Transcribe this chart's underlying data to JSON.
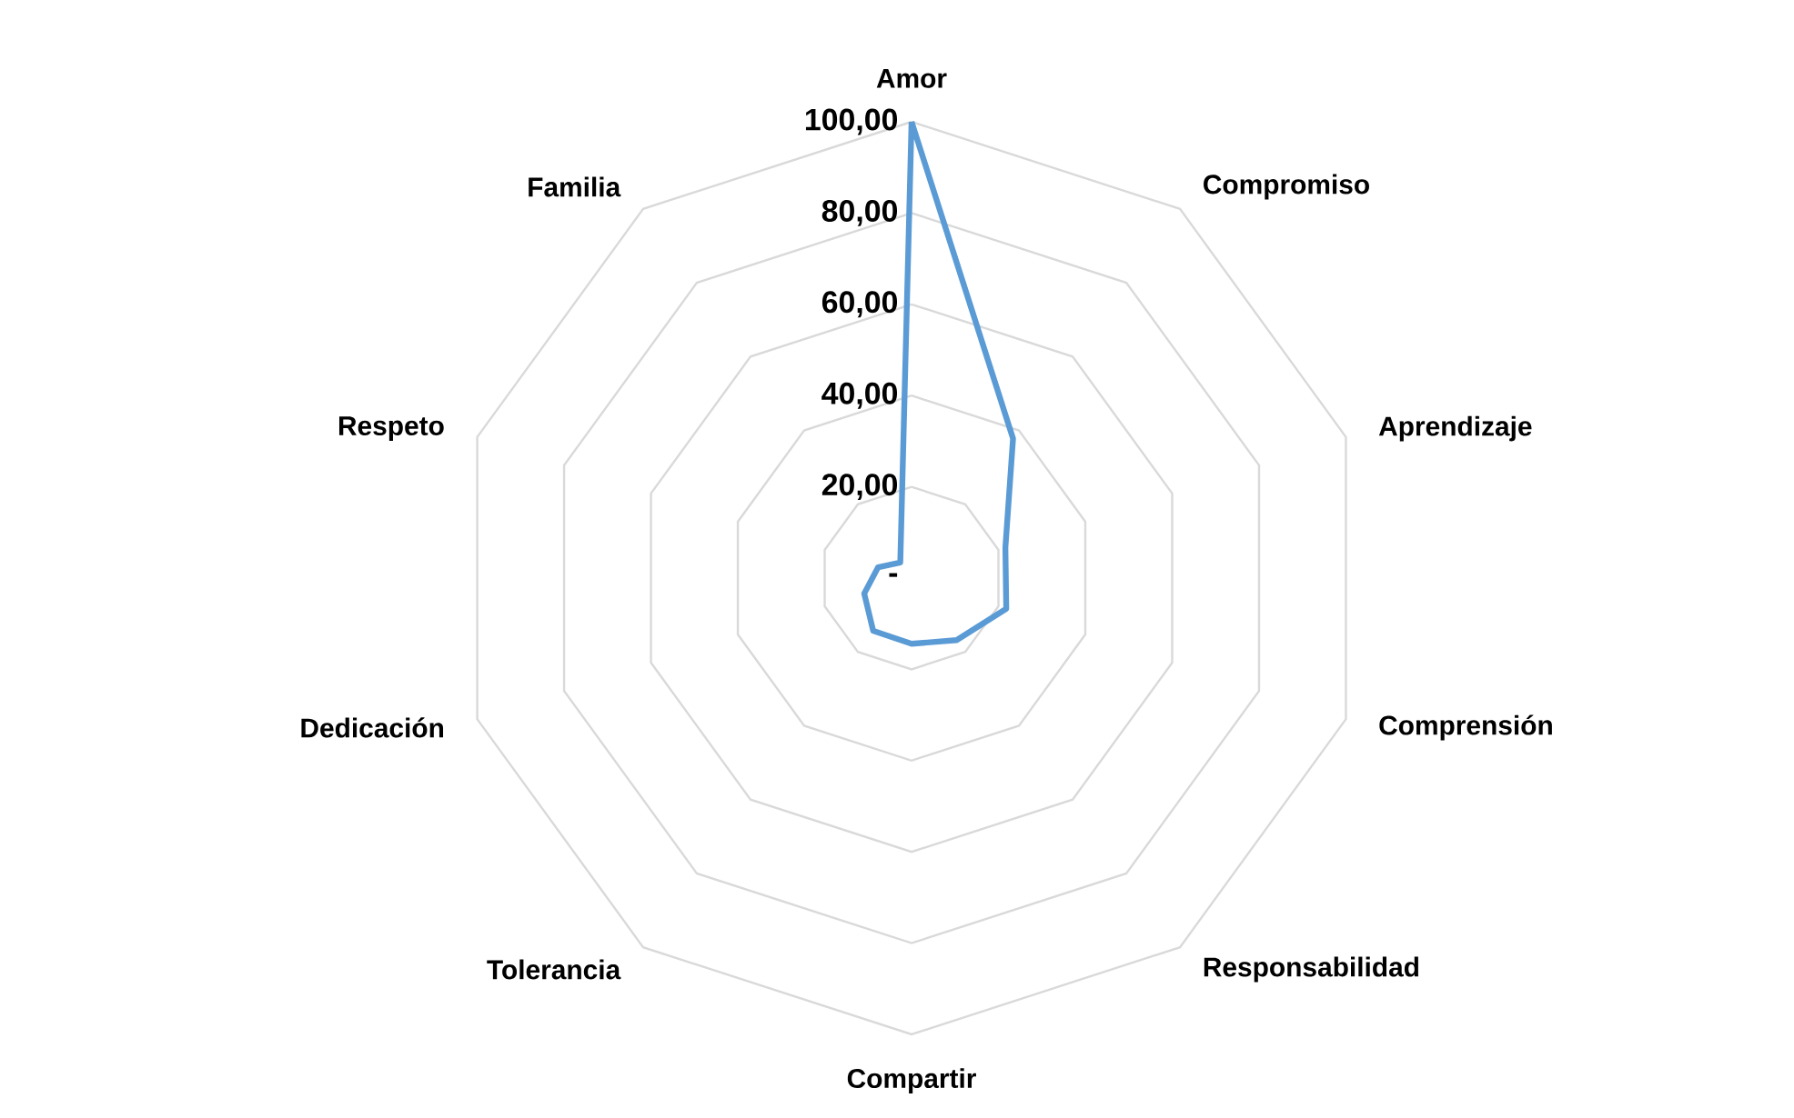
{
  "chart_data": {
    "type": "radar",
    "categories": [
      "Amor",
      "Compromiso",
      "Aprendizaje",
      "Comprensión",
      "Responsabilidad",
      "Compartir",
      "Tolerancia",
      "Dedicación",
      "Respeto",
      "Familia"
    ],
    "series": [
      {
        "color": "#5b9bd5",
        "values": [
          100,
          37.8,
          21.6,
          21.8,
          16.8,
          14.4,
          14.3,
          10.9,
          7.7,
          4.2
        ]
      }
    ],
    "ylim": [
      0,
      100
    ],
    "yticks": [
      {
        "value": 0,
        "label": "-"
      },
      {
        "value": 20,
        "label": "20,00"
      },
      {
        "value": 40,
        "label": "40,00"
      },
      {
        "value": 60,
        "label": "60,00"
      },
      {
        "value": 80,
        "label": "80,00"
      },
      {
        "value": 100,
        "label": "100,00"
      }
    ],
    "grid": true
  }
}
